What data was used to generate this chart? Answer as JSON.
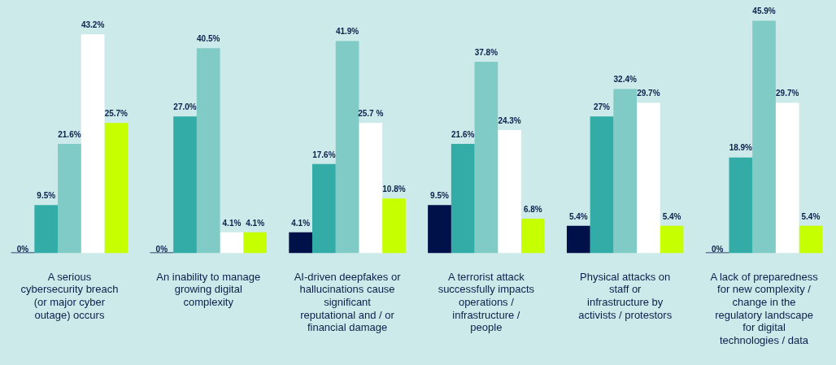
{
  "chart_data": {
    "type": "bar",
    "categories": [
      "A serious cybersecurity breach (or major cyber outage) occurs",
      "An inability to manage growing digital complexity",
      "AI-driven deepfakes or hallucinations cause significant reputational and / or financial damage",
      "A terrorist attack successfully impacts operations / infrastructure / people",
      "Physical attacks on staff or infrastructure by activists / protestors",
      "A lack of preparedness for new complexity / change in the regulatory landscape for digital technologies / data"
    ],
    "series": [
      {
        "color": "#001049",
        "values": [
          0,
          0,
          4.1,
          9.5,
          5.4,
          0
        ],
        "value_labels": [
          "0%",
          "0%",
          "4.1%",
          "9.5%",
          "5.4%",
          "0%"
        ]
      },
      {
        "color": "#33aca8",
        "values": [
          9.5,
          27.0,
          17.6,
          21.6,
          27,
          18.9
        ],
        "value_labels": [
          "9.5%",
          "27.0%",
          "17.6%",
          "21.6%",
          "27%",
          "18.9%"
        ]
      },
      {
        "color": "#80cbc6",
        "values": [
          21.6,
          40.5,
          41.9,
          37.8,
          32.4,
          45.9
        ],
        "value_labels": [
          "21.6%",
          "40.5%",
          "41.9%",
          "37.8%",
          "32.4%",
          "45.9%"
        ]
      },
      {
        "color": "#ffffff",
        "values": [
          43.2,
          4.1,
          25.7,
          24.3,
          29.7,
          29.7
        ],
        "value_labels": [
          "43.2%",
          "4.1%",
          "25.7 %",
          "24.3%",
          "29.7%",
          "29.7%"
        ]
      },
      {
        "color": "#c6ff00",
        "values": [
          25.7,
          4.1,
          10.8,
          6.8,
          5.4,
          5.4
        ],
        "value_labels": [
          "25.7%",
          "4.1%",
          "10.8%",
          "6.8%",
          "5.4%",
          "5.4%"
        ]
      }
    ],
    "grid": false,
    "legend": false,
    "tick_labels": "x"
  }
}
